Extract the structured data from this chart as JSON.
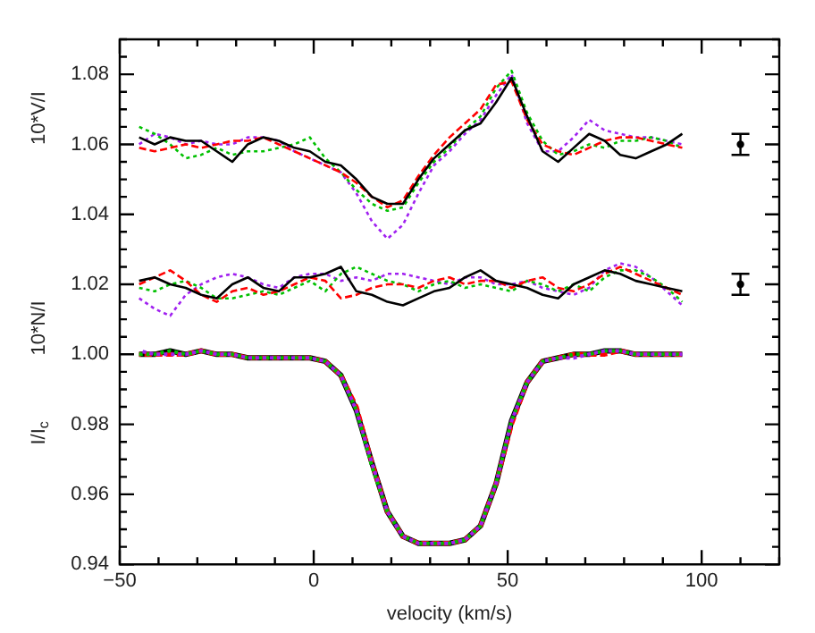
{
  "chart_data": {
    "type": "line",
    "xlabel": "velocity (km/s)",
    "ylabel": "I/I$_{c}$",
    "annotations": [
      "10*V/I",
      "10*N/I"
    ],
    "xlim": [
      -50,
      120
    ],
    "xticks": [
      -50,
      0,
      50,
      100
    ],
    "ylim": [
      0.94,
      1.09
    ],
    "yticks": [
      {
        "value": 0.94,
        "label": "0.94"
      },
      {
        "value": 0.96,
        "label": "0.96"
      },
      {
        "value": 0.98,
        "label": "0.98"
      },
      {
        "value": 1.0,
        "label": "1.00"
      },
      {
        "value": 1.02,
        "label": "1.02"
      },
      {
        "value": 1.04,
        "label": "1.04"
      },
      {
        "value": 1.06,
        "label": "1.06"
      },
      {
        "value": 1.08,
        "label": "1.08"
      }
    ],
    "grid": false,
    "legend": false,
    "marker": "none",
    "x": [
      -45,
      -41,
      -37,
      -33,
      -29,
      -25,
      -21,
      -17,
      -13,
      -9,
      -5,
      -1,
      3,
      7,
      11,
      15,
      19,
      23,
      27,
      31,
      35,
      39,
      43,
      47,
      51,
      55,
      59,
      63,
      67,
      71,
      75,
      79,
      83,
      87,
      91,
      95
    ],
    "series": [
      {
        "color": "#000000",
        "line_style": "solid",
        "values": [
          1.062,
          1.06,
          1.062,
          1.061,
          1.061,
          1.058,
          1.055,
          1.06,
          1.062,
          1.061,
          1.059,
          1.058,
          1.055,
          1.054,
          1.05,
          1.045,
          1.043,
          1.043,
          1.05,
          1.056,
          1.06,
          1.064,
          1.066,
          1.072,
          1.079,
          1.068,
          1.058,
          1.055,
          1.059,
          1.063,
          1.061,
          1.057,
          1.056,
          1.058,
          1.06,
          1.063
        ]
      },
      {
        "color": "#ff0000",
        "line_style": "dashed",
        "values": [
          1.059,
          1.058,
          1.059,
          1.06,
          1.059,
          1.06,
          1.061,
          1.061,
          1.062,
          1.06,
          1.058,
          1.056,
          1.054,
          1.052,
          1.049,
          1.045,
          1.042,
          1.044,
          1.051,
          1.057,
          1.062,
          1.066,
          1.07,
          1.077,
          1.078,
          1.067,
          1.06,
          1.058,
          1.057,
          1.059,
          1.061,
          1.062,
          1.062,
          1.061,
          1.06,
          1.059
        ]
      },
      {
        "color": "#00c000",
        "line_style": "dotted",
        "values": [
          1.065,
          1.063,
          1.06,
          1.056,
          1.057,
          1.059,
          1.057,
          1.058,
          1.058,
          1.059,
          1.06,
          1.062,
          1.056,
          1.052,
          1.047,
          1.043,
          1.041,
          1.042,
          1.049,
          1.055,
          1.059,
          1.064,
          1.068,
          1.076,
          1.081,
          1.069,
          1.061,
          1.057,
          1.058,
          1.06,
          1.059,
          1.061,
          1.061,
          1.062,
          1.061,
          1.059
        ]
      },
      {
        "color": "#a020f0",
        "line_style": "dotted",
        "values": [
          1.06,
          1.063,
          1.062,
          1.06,
          1.061,
          1.06,
          1.06,
          1.062,
          1.062,
          1.061,
          1.058,
          1.056,
          1.054,
          1.052,
          1.046,
          1.038,
          1.033,
          1.037,
          1.046,
          1.054,
          1.058,
          1.063,
          1.067,
          1.074,
          1.08,
          1.066,
          1.058,
          1.058,
          1.062,
          1.067,
          1.064,
          1.063,
          1.062,
          1.062,
          1.061,
          1.06
        ]
      },
      {
        "color": "#000000",
        "line_style": "solid",
        "values": [
          1.021,
          1.022,
          1.02,
          1.019,
          1.017,
          1.016,
          1.02,
          1.022,
          1.019,
          1.018,
          1.022,
          1.022,
          1.023,
          1.025,
          1.018,
          1.017,
          1.015,
          1.014,
          1.016,
          1.018,
          1.019,
          1.022,
          1.024,
          1.021,
          1.02,
          1.019,
          1.017,
          1.016,
          1.02,
          1.022,
          1.024,
          1.023,
          1.021,
          1.02,
          1.019,
          1.018
        ]
      },
      {
        "color": "#ff0000",
        "line_style": "dashed",
        "values": [
          1.02,
          1.022,
          1.024,
          1.021,
          1.017,
          1.015,
          1.018,
          1.019,
          1.017,
          1.018,
          1.02,
          1.022,
          1.021,
          1.016,
          1.017,
          1.019,
          1.02,
          1.02,
          1.019,
          1.021,
          1.022,
          1.02,
          1.021,
          1.021,
          1.019,
          1.021,
          1.022,
          1.019,
          1.018,
          1.02,
          1.023,
          1.025,
          1.023,
          1.021,
          1.019,
          1.017
        ]
      },
      {
        "color": "#00c000",
        "line_style": "dotted",
        "values": [
          1.019,
          1.018,
          1.02,
          1.021,
          1.019,
          1.016,
          1.016,
          1.017,
          1.018,
          1.017,
          1.019,
          1.021,
          1.018,
          1.023,
          1.025,
          1.023,
          1.021,
          1.02,
          1.018,
          1.02,
          1.021,
          1.019,
          1.02,
          1.019,
          1.018,
          1.021,
          1.02,
          1.018,
          1.02,
          1.018,
          1.022,
          1.024,
          1.024,
          1.022,
          1.019,
          1.015
        ]
      },
      {
        "color": "#a020f0",
        "line_style": "dotted",
        "values": [
          1.016,
          1.013,
          1.011,
          1.017,
          1.02,
          1.022,
          1.023,
          1.022,
          1.02,
          1.019,
          1.022,
          1.023,
          1.023,
          1.021,
          1.022,
          1.021,
          1.023,
          1.023,
          1.022,
          1.021,
          1.02,
          1.022,
          1.022,
          1.02,
          1.02,
          1.021,
          1.019,
          1.018,
          1.017,
          1.019,
          1.024,
          1.026,
          1.025,
          1.022,
          1.018,
          1.014
        ]
      },
      {
        "color": "#000000",
        "line_style": "solid",
        "values": [
          1.0,
          1.0,
          1.001,
          1.0,
          1.001,
          1.0,
          1.0,
          0.999,
          0.999,
          0.999,
          0.999,
          0.999,
          0.998,
          0.994,
          0.984,
          0.969,
          0.955,
          0.948,
          0.946,
          0.946,
          0.946,
          0.947,
          0.951,
          0.963,
          0.981,
          0.992,
          0.998,
          0.999,
          1.0,
          1.0,
          1.001,
          1.001,
          1.0,
          1.0,
          1.0,
          1.0
        ]
      },
      {
        "color": "#ff0000",
        "line_style": "dashed",
        "values": [
          1.0,
          1.0,
          1.0,
          1.0,
          1.001,
          1.0,
          1.0,
          0.999,
          0.999,
          0.999,
          0.999,
          0.999,
          0.998,
          0.994,
          0.985,
          0.969,
          0.955,
          0.948,
          0.946,
          0.946,
          0.946,
          0.947,
          0.951,
          0.963,
          0.98,
          0.992,
          0.998,
          0.999,
          1.0,
          1.0,
          1.0,
          1.001,
          1.0,
          1.0,
          1.0,
          1.0
        ]
      },
      {
        "color": "#00c000",
        "line_style": "dotted",
        "values": [
          1.0,
          1.0,
          1.001,
          1.0,
          1.001,
          1.0,
          1.0,
          0.999,
          0.999,
          0.999,
          0.999,
          0.999,
          0.998,
          0.994,
          0.984,
          0.968,
          0.955,
          0.948,
          0.946,
          0.946,
          0.946,
          0.947,
          0.951,
          0.963,
          0.981,
          0.992,
          0.998,
          0.999,
          1.0,
          1.0,
          1.001,
          1.001,
          1.0,
          1.0,
          1.0,
          1.0
        ]
      },
      {
        "color": "#a020f0",
        "line_style": "dotted",
        "values": [
          1.001,
          1.0,
          1.0,
          1.0,
          1.001,
          1.0,
          1.0,
          0.999,
          0.999,
          0.999,
          0.999,
          0.999,
          0.998,
          0.994,
          0.984,
          0.969,
          0.955,
          0.948,
          0.946,
          0.946,
          0.946,
          0.947,
          0.951,
          0.963,
          0.981,
          0.992,
          0.998,
          0.999,
          0.999,
          1.0,
          1.001,
          1.001,
          1.0,
          1.0,
          1.0,
          1.0
        ]
      },
      {
        "type": "scatter",
        "color": "#000000",
        "marker": "circle",
        "x": [
          110,
          110
        ],
        "values": [
          1.06,
          1.02
        ],
        "errors": [
          0.003,
          0.003
        ]
      }
    ]
  }
}
